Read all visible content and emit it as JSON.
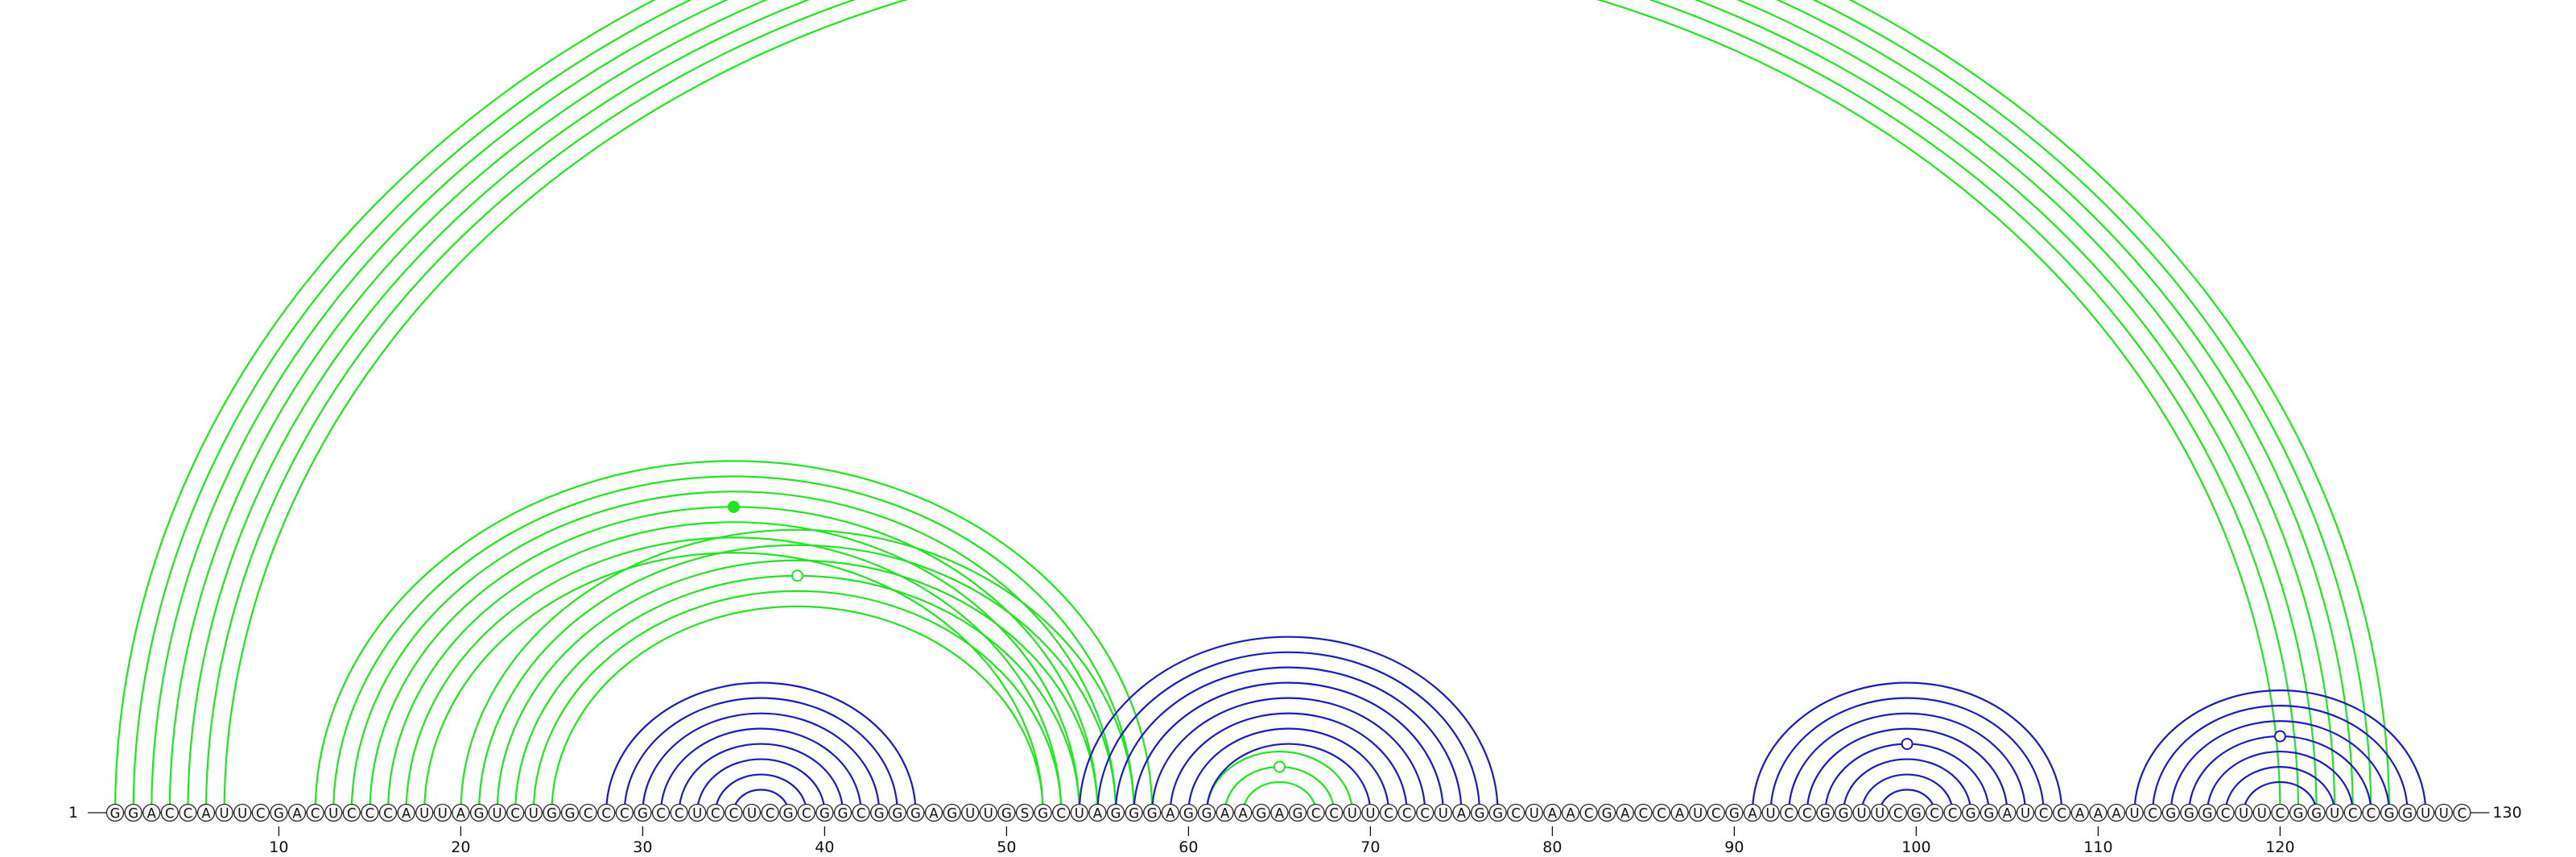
{
  "sequence": "GGACCAUUCGACUCCCAUUAGUCUGGCCCGCCUCCUCGCGGCGGGAGUUGSGCUAGGGAGGAAGAGCCUUCCCUAGGCUAACGACCAUCGAUCCGGUUCGCCGGAUCCAAAUCGGGCUUCGGUCCGGUUC",
  "start_label": "1",
  "end_label": "130",
  "ticks": [
    "10",
    "20",
    "30",
    "40",
    "50",
    "60",
    "70",
    "80",
    "90",
    "100",
    "110",
    "120"
  ],
  "colors": {
    "green": "#1ce81c",
    "blue": "#1a1acc",
    "nucleotide_outline": "#222222",
    "nucleotide_fill": "#f7f7f7"
  },
  "helices": [
    {
      "color": "green",
      "pairs": [
        [
          1,
          126
        ],
        [
          2,
          125
        ],
        [
          3,
          124
        ],
        [
          4,
          123
        ],
        [
          5,
          122
        ],
        [
          6,
          121
        ],
        [
          7,
          120
        ]
      ]
    },
    {
      "color": "green",
      "pairs": [
        [
          12,
          58
        ],
        [
          13,
          57
        ],
        [
          14,
          56
        ],
        [
          15,
          55
        ],
        [
          16,
          54
        ],
        [
          17,
          53
        ],
        [
          18,
          52
        ]
      ]
    },
    {
      "color": "green",
      "pairs": [
        [
          20,
          57
        ],
        [
          21,
          56
        ],
        [
          22,
          55
        ],
        [
          23,
          54
        ],
        [
          24,
          53
        ],
        [
          25,
          52
        ]
      ]
    },
    {
      "color": "green",
      "pairs": [
        [
          61,
          69
        ],
        [
          62,
          68
        ],
        [
          63,
          67
        ]
      ]
    },
    {
      "color": "blue",
      "pairs": [
        [
          28,
          45
        ],
        [
          29,
          44
        ],
        [
          30,
          43
        ],
        [
          31,
          42
        ],
        [
          32,
          41
        ],
        [
          33,
          40
        ],
        [
          34,
          39
        ],
        [
          35,
          38
        ]
      ]
    },
    {
      "color": "blue",
      "pairs": [
        [
          54,
          77
        ],
        [
          55,
          76
        ],
        [
          56,
          75
        ],
        [
          57,
          74
        ],
        [
          58,
          73
        ],
        [
          59,
          72
        ],
        [
          60,
          71
        ],
        [
          61,
          70
        ]
      ]
    },
    {
      "color": "blue",
      "pairs": [
        [
          91,
          108
        ],
        [
          92,
          107
        ],
        [
          93,
          106
        ],
        [
          94,
          105
        ],
        [
          95,
          104
        ],
        [
          96,
          103
        ],
        [
          97,
          102
        ],
        [
          98,
          101
        ]
      ]
    },
    {
      "color": "blue",
      "pairs": [
        [
          112,
          128
        ],
        [
          113,
          127
        ],
        [
          114,
          126
        ],
        [
          115,
          125
        ],
        [
          116,
          124
        ],
        [
          117,
          123
        ],
        [
          118,
          122
        ]
      ]
    }
  ],
  "markers": [
    {
      "helix": 0,
      "style": "open"
    },
    {
      "helix": 1,
      "style": "filled"
    },
    {
      "helix": 2,
      "style": "open"
    },
    {
      "helix": 3,
      "style": "open"
    },
    {
      "helix": 6,
      "style": "open"
    },
    {
      "helix": 7,
      "style": "open"
    }
  ]
}
